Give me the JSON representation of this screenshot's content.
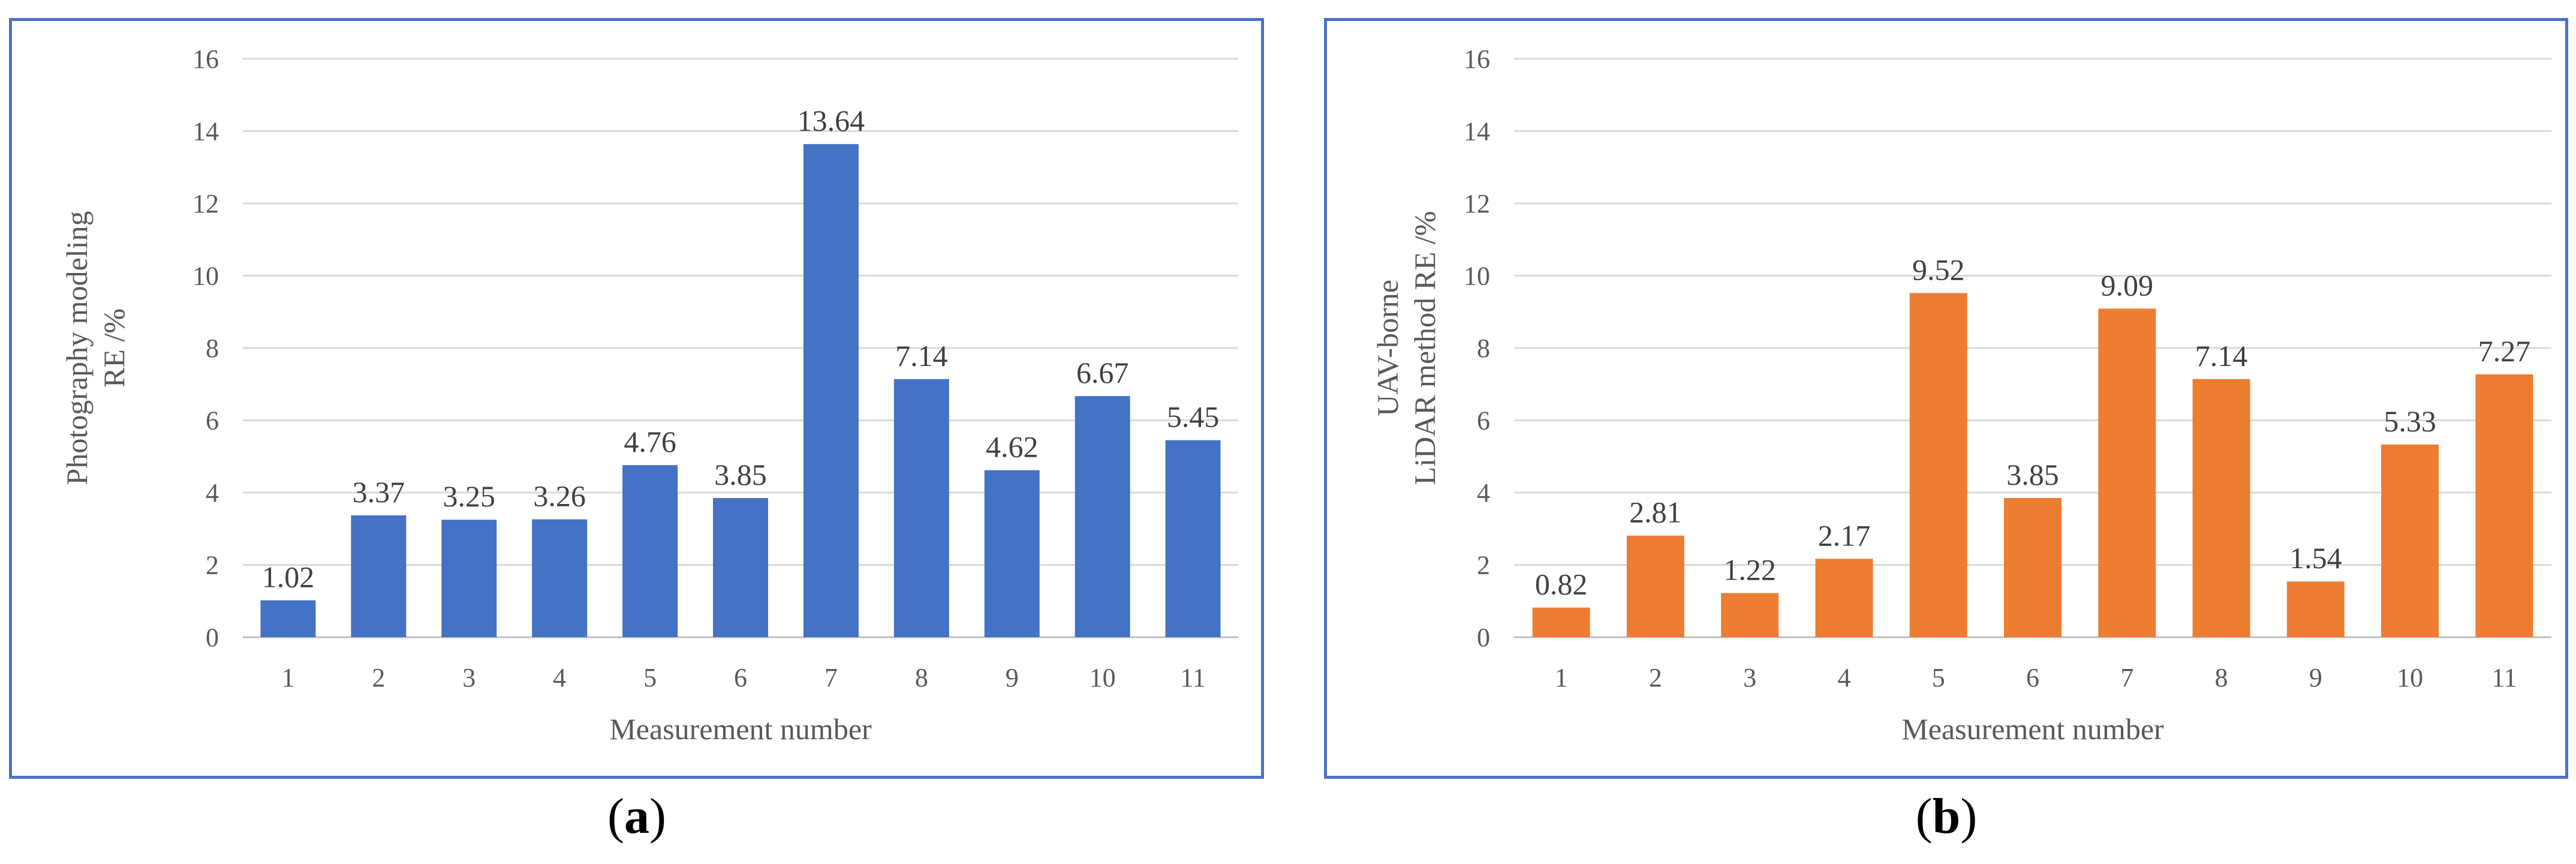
{
  "chart_data": [
    {
      "type": "bar",
      "title": "",
      "xlabel": "Measurement number",
      "ylabel_lines": [
        "Photography modeling",
        "RE /%"
      ],
      "categories": [
        "1",
        "2",
        "3",
        "4",
        "5",
        "6",
        "7",
        "8",
        "9",
        "10",
        "11"
      ],
      "values": [
        1.02,
        3.37,
        3.25,
        3.26,
        4.76,
        3.85,
        13.64,
        7.14,
        4.62,
        6.67,
        5.45
      ],
      "data_labels": [
        "1.02",
        "3.37",
        "3.25",
        "3.26",
        "4.76",
        "3.85",
        "13.64",
        "7.14",
        "4.62",
        "6.67",
        "5.45"
      ],
      "ylim": [
        0,
        16
      ],
      "yticks": [
        0,
        2,
        4,
        6,
        8,
        10,
        12,
        14,
        16
      ],
      "grid": true,
      "bar_color": "#4472c4",
      "caption_letter": "a"
    },
    {
      "type": "bar",
      "title": "",
      "xlabel": "Measurement number",
      "ylabel_lines": [
        "UAV-borne",
        "LiDAR method RE /%"
      ],
      "categories": [
        "1",
        "2",
        "3",
        "4",
        "5",
        "6",
        "7",
        "8",
        "9",
        "10",
        "11"
      ],
      "values": [
        0.82,
        2.81,
        1.22,
        2.17,
        9.52,
        3.85,
        9.09,
        7.14,
        1.54,
        5.33,
        7.27
      ],
      "data_labels": [
        "0.82",
        "2.81",
        "1.22",
        "2.17",
        "9.52",
        "3.85",
        "9.09",
        "7.14",
        "1.54",
        "5.33",
        "7.27"
      ],
      "ylim": [
        0,
        16
      ],
      "yticks": [
        0,
        2,
        4,
        6,
        8,
        10,
        12,
        14,
        16
      ],
      "grid": true,
      "bar_color": "#ed7d31",
      "caption_letter": "b"
    }
  ],
  "captions": [
    {
      "open": "(",
      "letter": "a",
      "close": ")"
    },
    {
      "open": "(",
      "letter": "b",
      "close": ")"
    }
  ]
}
